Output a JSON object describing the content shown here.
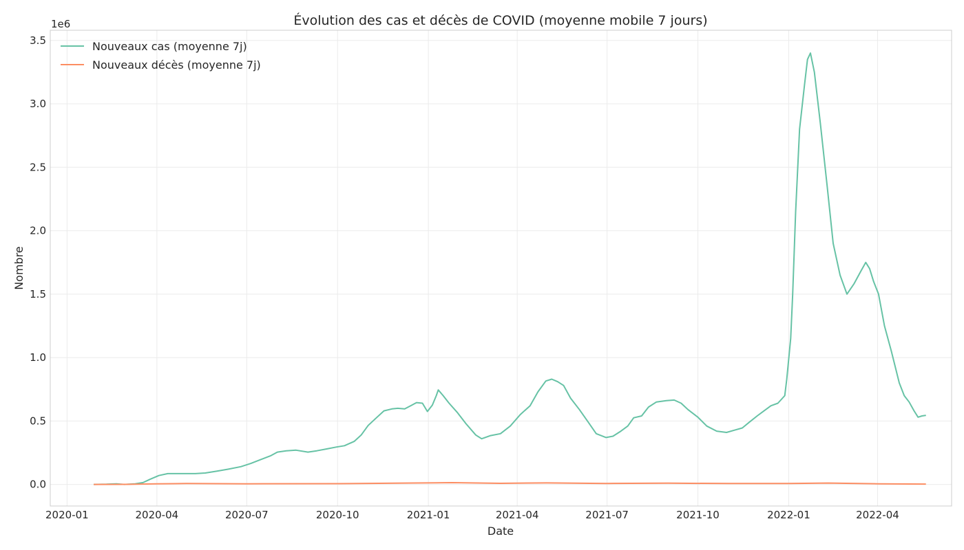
{
  "chart_data": {
    "type": "line",
    "title": "Évolution des cas et décès de COVID (moyenne mobile 7 jours)",
    "xlabel": "Date",
    "ylabel": "Nombre",
    "y_offset_label": "1e6",
    "xlim": [
      "2019-12-15",
      "2022-06-15"
    ],
    "ylim": [
      -170000,
      3580000
    ],
    "x_ticks": [
      "2020-01-01",
      "2020-04-01",
      "2020-07-01",
      "2020-10-01",
      "2021-01-01",
      "2021-04-01",
      "2021-07-01",
      "2021-10-01",
      "2022-01-01",
      "2022-04-01"
    ],
    "x_tick_labels": [
      "2020-01",
      "2020-04",
      "2020-07",
      "2020-10",
      "2021-01",
      "2021-04",
      "2021-07",
      "2021-10",
      "2022-01",
      "2022-04"
    ],
    "y_ticks": [
      0,
      500000,
      1000000,
      1500000,
      2000000,
      2500000,
      3000000,
      3500000
    ],
    "y_tick_labels": [
      "0.0",
      "0.5",
      "1.0",
      "1.5",
      "2.0",
      "2.5",
      "3.0",
      "3.5"
    ],
    "grid": true,
    "legend_position": "top-left",
    "series": [
      {
        "name": "Nouveaux cas (moyenne 7j)",
        "color": "#66c2a5",
        "points": [
          [
            "2020-01-28",
            0
          ],
          [
            "2020-02-10",
            2000
          ],
          [
            "2020-02-20",
            5000
          ],
          [
            "2020-02-28",
            0
          ],
          [
            "2020-03-10",
            5000
          ],
          [
            "2020-03-18",
            15000
          ],
          [
            "2020-03-25",
            40000
          ],
          [
            "2020-04-03",
            70000
          ],
          [
            "2020-04-12",
            85000
          ],
          [
            "2020-04-25",
            85000
          ],
          [
            "2020-05-10",
            85000
          ],
          [
            "2020-05-20",
            90000
          ],
          [
            "2020-06-01",
            105000
          ],
          [
            "2020-06-12",
            120000
          ],
          [
            "2020-06-25",
            140000
          ],
          [
            "2020-07-05",
            165000
          ],
          [
            "2020-07-15",
            195000
          ],
          [
            "2020-07-25",
            225000
          ],
          [
            "2020-08-01",
            255000
          ],
          [
            "2020-08-10",
            265000
          ],
          [
            "2020-08-20",
            270000
          ],
          [
            "2020-09-01",
            255000
          ],
          [
            "2020-09-10",
            265000
          ],
          [
            "2020-09-20",
            280000
          ],
          [
            "2020-09-30",
            295000
          ],
          [
            "2020-10-08",
            305000
          ],
          [
            "2020-10-18",
            340000
          ],
          [
            "2020-10-25",
            390000
          ],
          [
            "2020-11-01",
            465000
          ],
          [
            "2020-11-10",
            530000
          ],
          [
            "2020-11-17",
            580000
          ],
          [
            "2020-11-25",
            595000
          ],
          [
            "2020-12-01",
            600000
          ],
          [
            "2020-12-08",
            595000
          ],
          [
            "2020-12-14",
            620000
          ],
          [
            "2020-12-20",
            645000
          ],
          [
            "2020-12-26",
            640000
          ],
          [
            "2020-12-31",
            575000
          ],
          [
            "2021-01-05",
            625000
          ],
          [
            "2021-01-09",
            700000
          ],
          [
            "2021-01-11",
            745000
          ],
          [
            "2021-01-16",
            700000
          ],
          [
            "2021-01-22",
            640000
          ],
          [
            "2021-01-30",
            570000
          ],
          [
            "2021-02-08",
            480000
          ],
          [
            "2021-02-18",
            390000
          ],
          [
            "2021-02-24",
            360000
          ],
          [
            "2021-03-05",
            385000
          ],
          [
            "2021-03-15",
            400000
          ],
          [
            "2021-03-25",
            460000
          ],
          [
            "2021-04-04",
            550000
          ],
          [
            "2021-04-14",
            620000
          ],
          [
            "2021-04-22",
            730000
          ],
          [
            "2021-04-30",
            815000
          ],
          [
            "2021-05-06",
            830000
          ],
          [
            "2021-05-12",
            810000
          ],
          [
            "2021-05-18",
            780000
          ],
          [
            "2021-05-25",
            680000
          ],
          [
            "2021-06-03",
            590000
          ],
          [
            "2021-06-12",
            490000
          ],
          [
            "2021-06-20",
            400000
          ],
          [
            "2021-06-30",
            370000
          ],
          [
            "2021-07-07",
            380000
          ],
          [
            "2021-07-15",
            420000
          ],
          [
            "2021-07-22",
            460000
          ],
          [
            "2021-07-28",
            525000
          ],
          [
            "2021-08-05",
            540000
          ],
          [
            "2021-08-12",
            610000
          ],
          [
            "2021-08-20",
            650000
          ],
          [
            "2021-08-30",
            660000
          ],
          [
            "2021-09-07",
            665000
          ],
          [
            "2021-09-14",
            640000
          ],
          [
            "2021-09-21",
            590000
          ],
          [
            "2021-10-01",
            530000
          ],
          [
            "2021-10-10",
            460000
          ],
          [
            "2021-10-20",
            420000
          ],
          [
            "2021-10-30",
            410000
          ],
          [
            "2021-11-08",
            430000
          ],
          [
            "2021-11-15",
            445000
          ],
          [
            "2021-11-22",
            490000
          ],
          [
            "2021-11-30",
            540000
          ],
          [
            "2021-12-07",
            580000
          ],
          [
            "2021-12-14",
            620000
          ],
          [
            "2021-12-21",
            640000
          ],
          [
            "2021-12-28",
            700000
          ],
          [
            "2021-12-30",
            830000
          ],
          [
            "2022-01-03",
            1150000
          ],
          [
            "2022-01-05",
            1500000
          ],
          [
            "2022-01-08",
            2150000
          ],
          [
            "2022-01-12",
            2800000
          ],
          [
            "2022-01-17",
            3150000
          ],
          [
            "2022-01-20",
            3350000
          ],
          [
            "2022-01-23",
            3400000
          ],
          [
            "2022-01-27",
            3250000
          ],
          [
            "2022-02-02",
            2850000
          ],
          [
            "2022-02-09",
            2350000
          ],
          [
            "2022-02-15",
            1900000
          ],
          [
            "2022-02-22",
            1650000
          ],
          [
            "2022-03-01",
            1500000
          ],
          [
            "2022-03-08",
            1580000
          ],
          [
            "2022-03-15",
            1680000
          ],
          [
            "2022-03-20",
            1750000
          ],
          [
            "2022-03-24",
            1700000
          ],
          [
            "2022-03-28",
            1600000
          ],
          [
            "2022-04-02",
            1500000
          ],
          [
            "2022-04-08",
            1250000
          ],
          [
            "2022-04-15",
            1050000
          ],
          [
            "2022-04-23",
            800000
          ],
          [
            "2022-04-28",
            700000
          ],
          [
            "2022-05-03",
            650000
          ],
          [
            "2022-05-08",
            580000
          ],
          [
            "2022-05-12",
            530000
          ],
          [
            "2022-05-16",
            540000
          ],
          [
            "2022-05-20",
            545000
          ]
        ]
      },
      {
        "name": "Nouveaux décès (moyenne 7j)",
        "color": "#fc8d62",
        "points": [
          [
            "2020-01-28",
            0
          ],
          [
            "2020-03-01",
            500
          ],
          [
            "2020-04-01",
            5000
          ],
          [
            "2020-05-01",
            7000
          ],
          [
            "2020-07-01",
            5000
          ],
          [
            "2020-10-01",
            6000
          ],
          [
            "2020-12-01",
            10000
          ],
          [
            "2021-01-25",
            14000
          ],
          [
            "2021-03-15",
            9000
          ],
          [
            "2021-05-01",
            12000
          ],
          [
            "2021-07-01",
            8000
          ],
          [
            "2021-09-01",
            10000
          ],
          [
            "2021-11-01",
            7000
          ],
          [
            "2022-01-01",
            7000
          ],
          [
            "2022-02-10",
            11000
          ],
          [
            "2022-04-01",
            5000
          ],
          [
            "2022-05-20",
            3000
          ]
        ]
      }
    ]
  }
}
